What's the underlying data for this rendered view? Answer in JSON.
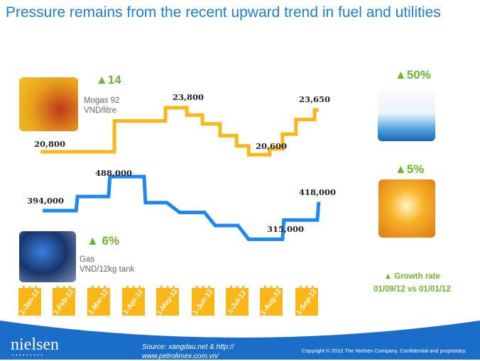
{
  "title": "Pressure remains from the recent upward trend in fuel and utilities",
  "mogas": {
    "change": "▲14",
    "name": "Mogas 92",
    "unit": "VND/litre"
  },
  "gas": {
    "change": "▲ 6%",
    "name": "Gas",
    "unit": "VND/12kg tank"
  },
  "water": {
    "change": "▲50%"
  },
  "electricity": {
    "change": "▲5%"
  },
  "growth": {
    "label": "Growth rate",
    "period": "01/09/12 vs 01/01/12",
    "icon": "triangle-up-icon"
  },
  "colors": {
    "mogas": "#fbb617",
    "gas": "#1e88f0",
    "accent": "#6cb52d",
    "footer": "#1a6dc8"
  },
  "footer": {
    "logo": "nielsen",
    "source_line1": "Source:  xangdau.net & http://",
    "source_line2": "www.petrolimex.com.vn/",
    "copyright": "Copyright © 2012 The Nielsen Company. Confidential and proprietary."
  },
  "chart_data": {
    "type": "line",
    "categories": [
      "1-Jan-12",
      "1-Feb-12",
      "1-Mar-12",
      "1-Apr-12",
      "1-May-12",
      "1-Jun-12",
      "1-Jul-12",
      "1-Aug-12",
      "1-Sep-12"
    ],
    "series": [
      {
        "name": "Mogas 92 (VND/litre)",
        "points": [
          [
            0.25,
            20800
          ],
          [
            2.39,
            20800
          ],
          [
            2.39,
            22900
          ],
          [
            3.87,
            22900
          ],
          [
            3.87,
            23800
          ],
          [
            4.49,
            23800
          ],
          [
            4.49,
            23300
          ],
          [
            4.94,
            23300
          ],
          [
            4.94,
            22700
          ],
          [
            5.45,
            22700
          ],
          [
            5.45,
            21900
          ],
          [
            5.93,
            21900
          ],
          [
            5.93,
            21200
          ],
          [
            6.28,
            21200
          ],
          [
            6.28,
            20600
          ],
          [
            6.89,
            20600
          ],
          [
            6.89,
            21000
          ],
          [
            7.26,
            21000
          ],
          [
            7.26,
            22000
          ],
          [
            7.65,
            22000
          ],
          [
            7.65,
            23000
          ],
          [
            8.19,
            23000
          ],
          [
            8.19,
            23650
          ],
          [
            8.31,
            23650
          ]
        ],
        "labels": [
          "20,800",
          "23,800",
          "20,600",
          "23,650"
        ]
      },
      {
        "name": "Gas (VND/12kg tank)",
        "points": [
          [
            0.31,
            394000
          ],
          [
            1.28,
            394000
          ],
          [
            1.32,
            433000
          ],
          [
            2.22,
            433000
          ],
          [
            2.26,
            488000
          ],
          [
            3.25,
            488000
          ],
          [
            3.29,
            416000
          ],
          [
            3.91,
            416000
          ],
          [
            4.28,
            389000
          ],
          [
            5.0,
            389000
          ],
          [
            5.31,
            353000
          ],
          [
            5.97,
            353000
          ],
          [
            6.28,
            315000
          ],
          [
            7.26,
            315000
          ],
          [
            7.3,
            368000
          ],
          [
            8.27,
            368000
          ],
          [
            8.31,
            418000
          ]
        ],
        "labels": [
          "394,000",
          "488,000",
          "315,000",
          "418,000"
        ]
      }
    ]
  }
}
